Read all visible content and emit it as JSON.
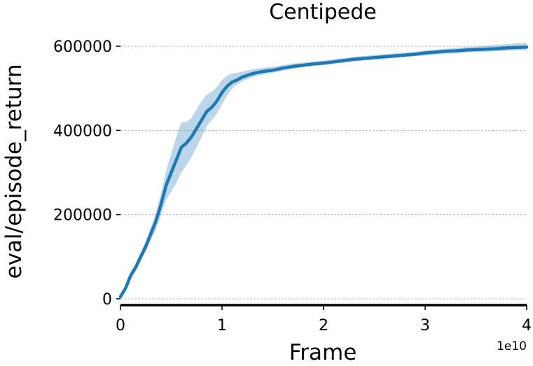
{
  "chart_data": {
    "type": "line",
    "title": "Centipede",
    "xlabel": "Frame",
    "ylabel": "eval/episode_return",
    "x_offset_label": "1e10",
    "xlim": [
      0,
      4
    ],
    "ylim": [
      -15000,
      630000
    ],
    "xticks": [
      0,
      1,
      2,
      3,
      4
    ],
    "yticks": [
      0,
      200000,
      400000,
      600000
    ],
    "xtick_labels": [
      "0",
      "1",
      "2",
      "3",
      "4"
    ],
    "ytick_labels": [
      "0",
      "200000",
      "400000",
      "600000"
    ],
    "grid": "y-dashed",
    "line_color": "#1f77b4",
    "band_color": "#1f77b4",
    "series": [
      {
        "x": [
          0,
          0.05,
          0.1,
          0.15,
          0.2,
          0.25,
          0.3,
          0.35,
          0.4,
          0.45,
          0.5,
          0.55,
          0.6,
          0.65,
          0.7,
          0.75,
          0.8,
          0.85,
          0.9,
          0.95,
          1.0,
          1.05,
          1.1,
          1.15,
          1.2,
          1.3,
          1.4,
          1.5,
          1.6,
          1.7,
          1.8,
          1.9,
          2.0,
          2.1,
          2.2,
          2.3,
          2.4,
          2.5,
          2.6,
          2.7,
          2.8,
          2.9,
          3.0,
          3.1,
          3.2,
          3.3,
          3.4,
          3.5,
          3.6,
          3.7,
          3.8,
          3.9,
          4.0
        ],
        "y": [
          5000,
          25000,
          55000,
          75000,
          100000,
          125000,
          155000,
          185000,
          225000,
          270000,
          300000,
          330000,
          360000,
          370000,
          385000,
          405000,
          425000,
          445000,
          455000,
          470000,
          490000,
          505000,
          515000,
          520000,
          527000,
          535000,
          540000,
          543000,
          548000,
          552000,
          555000,
          558000,
          560000,
          563000,
          566000,
          569000,
          571000,
          573000,
          575000,
          577000,
          579000,
          581000,
          584000,
          586000,
          588000,
          589000,
          591000,
          592000,
          593000,
          594000,
          596000,
          597000,
          598000
        ],
        "lower": [
          0,
          18000,
          47000,
          66000,
          90000,
          113000,
          140000,
          165000,
          200000,
          235000,
          255000,
          275000,
          300000,
          318000,
          337000,
          360000,
          385000,
          410000,
          425000,
          440000,
          462000,
          483000,
          500000,
          510000,
          517000,
          527000,
          533000,
          537000,
          542000,
          546000,
          550000,
          553000,
          555000,
          558000,
          561000,
          564000,
          566000,
          568000,
          570000,
          572000,
          574000,
          576000,
          578000,
          580000,
          582000,
          583000,
          585000,
          586000,
          587000,
          588000,
          589000,
          590000,
          590000
        ],
        "upper": [
          10000,
          32000,
          63000,
          84000,
          110000,
          137000,
          170000,
          205000,
          250000,
          305000,
          345000,
          385000,
          420000,
          420000,
          430000,
          450000,
          470000,
          485000,
          492000,
          503000,
          520000,
          530000,
          535000,
          537000,
          540000,
          545000,
          549000,
          551000,
          555000,
          559000,
          561000,
          564000,
          566000,
          569000,
          572000,
          575000,
          577000,
          579000,
          581000,
          583000,
          585000,
          587000,
          590000,
          592000,
          594000,
          596000,
          598000,
          599000,
          601000,
          603000,
          605000,
          607000,
          608000
        ]
      }
    ]
  }
}
